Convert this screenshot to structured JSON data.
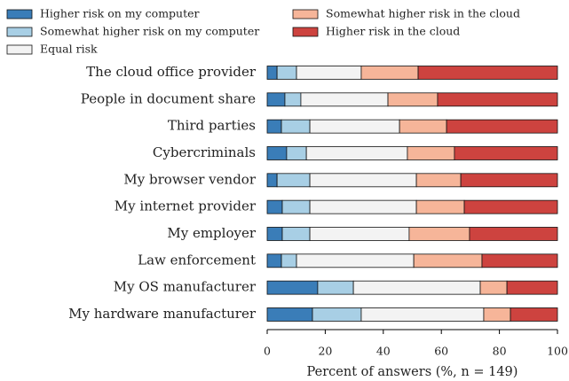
{
  "chart_data": {
    "type": "stacked_barh",
    "xlabel": "Percent of answers (%, n = 149)",
    "categories": [
      "The cloud office provider",
      "People in document share",
      "Third parties",
      "Cybercriminals",
      "My browser vendor",
      "My internet provider",
      "My employer",
      "Law enforcement",
      "My OS manufacturer",
      "My hardware manufacturer"
    ],
    "series": [
      {
        "name": "Higher risk on my computer",
        "color": "#3a7db8",
        "values": [
          3.4,
          6.1,
          4.9,
          6.7,
          3.4,
          5.2,
          5.2,
          4.9,
          17.4,
          15.6
        ]
      },
      {
        "name": "Somewhat higher risk on my computer",
        "color": "#a8cfe5",
        "values": [
          6.7,
          5.5,
          9.8,
          6.8,
          11.3,
          9.5,
          9.5,
          5.2,
          12.3,
          16.8
        ]
      },
      {
        "name": "Equal risk",
        "color": "#f3f3f3",
        "values": [
          22.3,
          30.0,
          30.9,
          34.8,
          36.7,
          36.7,
          34.2,
          40.4,
          43.7,
          42.2
        ]
      },
      {
        "name": "Somewhat higher risk in the cloud",
        "color": "#f6b599",
        "values": [
          19.6,
          17.1,
          16.2,
          16.2,
          15.3,
          16.5,
          20.8,
          23.5,
          9.2,
          9.2
        ]
      },
      {
        "name": "Higher risk in the cloud",
        "color": "#cd433f",
        "values": [
          48.0,
          41.3,
          38.2,
          35.5,
          33.3,
          32.1,
          30.3,
          26.0,
          17.4,
          16.2
        ]
      }
    ],
    "xlim": [
      0,
      100
    ],
    "xticks": [
      0,
      20,
      40,
      60,
      80,
      100
    ]
  }
}
